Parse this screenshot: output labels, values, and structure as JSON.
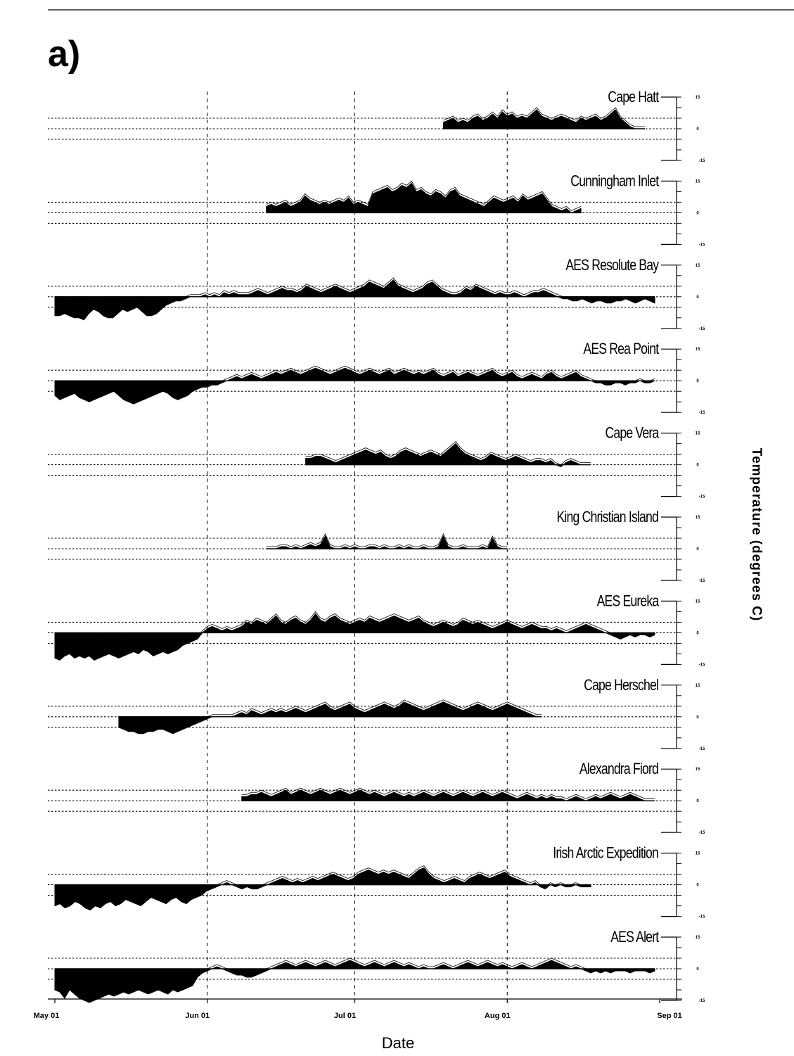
{
  "panel_label": "a)",
  "chart_data": {
    "type": "area",
    "xlabel": "Date",
    "ylabel": "Temperature (degrees C)",
    "x_ticks": [
      "May 01",
      "Jun 01",
      "Jul 01",
      "Aug 01",
      "Sep 01"
    ],
    "xlim": [
      "05-01",
      "09-01"
    ],
    "ylim": [
      -15,
      15
    ],
    "y_ticks": [
      "15",
      "0",
      "-15"
    ],
    "reference_lines": [
      -5,
      0,
      5
    ],
    "grid": "vertical dashed lines at month starts",
    "series": [
      {
        "name": "Cape Hatt",
        "start": "07-19",
        "end": "08-29",
        "values": [
          3,
          4,
          5,
          3,
          4,
          3,
          5,
          6,
          4,
          5,
          7,
          5,
          8,
          6,
          7,
          5,
          6,
          5,
          7,
          9,
          6,
          5,
          4,
          5,
          6,
          5,
          4,
          3,
          5,
          4,
          5,
          6,
          4,
          5,
          7,
          9,
          5,
          3,
          1,
          0,
          0,
          0
        ]
      },
      {
        "name": "Cunningham Inlet",
        "start": "06-13",
        "end": "08-16",
        "values": [
          3,
          4,
          3,
          4,
          5,
          3,
          4,
          5,
          8,
          6,
          5,
          4,
          5,
          4,
          5,
          6,
          5,
          7,
          4,
          5,
          4,
          3,
          9,
          10,
          11,
          12,
          10,
          11,
          13,
          12,
          14,
          10,
          11,
          9,
          8,
          10,
          9,
          7,
          10,
          11,
          8,
          7,
          6,
          5,
          4,
          3,
          5,
          7,
          6,
          5,
          6,
          7,
          5,
          8,
          6,
          7,
          8,
          9,
          6,
          3,
          2,
          1,
          2,
          0,
          1,
          2
        ]
      },
      {
        "name": "AES Resolute Bay",
        "start": "05-01",
        "end": "08-31",
        "values": [
          -9,
          -9,
          -8,
          -9,
          -10,
          -10,
          -11,
          -8,
          -6,
          -7,
          -9,
          -10,
          -10,
          -8,
          -6,
          -7,
          -6,
          -5,
          -7,
          -9,
          -9,
          -8,
          -6,
          -4,
          -3,
          -2,
          -2,
          -1,
          0,
          0,
          0,
          1,
          0,
          1,
          0,
          2,
          1,
          2,
          1,
          1,
          1,
          2,
          3,
          2,
          1,
          2,
          3,
          4,
          3,
          3,
          2,
          3,
          5,
          4,
          3,
          2,
          3,
          4,
          5,
          4,
          3,
          2,
          3,
          4,
          5,
          7,
          6,
          5,
          4,
          6,
          8,
          5,
          4,
          3,
          2,
          3,
          4,
          6,
          7,
          5,
          3,
          2,
          1,
          1,
          2,
          4,
          3,
          5,
          4,
          3,
          2,
          1,
          2,
          1,
          1,
          2,
          1,
          0,
          1,
          2,
          2,
          3,
          2,
          1,
          0,
          -1,
          -1,
          -2,
          -2,
          -1,
          -2,
          -3,
          -2,
          -2,
          -3,
          -3,
          -2,
          -2,
          -1,
          -2,
          -3,
          -2,
          -1,
          -2,
          -3
        ]
      },
      {
        "name": "AES Rea Point",
        "start": "05-01",
        "end": "08-31",
        "values": [
          -7,
          -9,
          -8,
          -7,
          -6,
          -8,
          -9,
          -10,
          -9,
          -8,
          -7,
          -6,
          -5,
          -7,
          -9,
          -10,
          -11,
          -10,
          -9,
          -8,
          -7,
          -6,
          -5,
          -6,
          -8,
          -9,
          -8,
          -7,
          -5,
          -4,
          -3,
          -3,
          -2,
          -2,
          -1,
          0,
          1,
          2,
          1,
          2,
          3,
          2,
          1,
          2,
          3,
          4,
          3,
          4,
          5,
          4,
          3,
          4,
          5,
          6,
          5,
          4,
          3,
          4,
          5,
          6,
          5,
          4,
          3,
          4,
          5,
          4,
          3,
          4,
          5,
          3,
          4,
          5,
          4,
          3,
          4,
          3,
          4,
          5,
          3,
          2,
          3,
          4,
          2,
          3,
          4,
          3,
          2,
          3,
          4,
          5,
          3,
          2,
          3,
          4,
          2,
          1,
          2,
          3,
          2,
          1,
          3,
          4,
          2,
          1,
          2,
          3,
          4,
          2,
          1,
          0,
          -1,
          -1,
          -2,
          -2,
          -1,
          -1,
          -2,
          -1,
          -1,
          0,
          -1,
          -1,
          0
        ]
      },
      {
        "name": "Cape Vera",
        "start": "06-21",
        "end": "08-18",
        "values": [
          3,
          3,
          4,
          4,
          3,
          2,
          1,
          2,
          3,
          4,
          5,
          6,
          7,
          6,
          5,
          6,
          4,
          3,
          4,
          6,
          7,
          6,
          5,
          4,
          5,
          6,
          5,
          4,
          6,
          8,
          10,
          7,
          5,
          4,
          3,
          2,
          3,
          5,
          4,
          3,
          2,
          3,
          4,
          3,
          2,
          1,
          2,
          2,
          1,
          2,
          0,
          -1,
          1,
          2,
          1,
          0,
          0,
          0
        ]
      },
      {
        "name": "King Christian Island",
        "start": "06-13",
        "end": "08-01",
        "values": [
          0,
          0,
          0,
          1,
          1,
          0,
          1,
          0,
          1,
          2,
          1,
          2,
          6,
          1,
          0,
          0,
          1,
          0,
          1,
          0,
          0,
          1,
          1,
          0,
          1,
          0,
          0,
          1,
          0,
          1,
          0,
          0,
          1,
          0,
          0,
          1,
          6,
          1,
          0,
          0,
          1,
          0,
          0,
          0,
          1,
          0,
          5,
          1,
          0,
          0
        ]
      },
      {
        "name": "AES Eureka",
        "start": "05-01",
        "end": "08-31",
        "values": [
          -12,
          -13,
          -11,
          -10,
          -12,
          -11,
          -12,
          -11,
          -13,
          -12,
          -11,
          -10,
          -11,
          -12,
          -11,
          -10,
          -9,
          -10,
          -8,
          -9,
          -11,
          -10,
          -9,
          -10,
          -9,
          -8,
          -6,
          -5,
          -4,
          -3,
          0,
          2,
          3,
          2,
          1,
          2,
          1,
          2,
          3,
          5,
          4,
          6,
          5,
          4,
          6,
          8,
          5,
          4,
          6,
          7,
          5,
          4,
          6,
          9,
          6,
          5,
          7,
          8,
          6,
          5,
          4,
          5,
          6,
          5,
          7,
          6,
          5,
          6,
          7,
          8,
          7,
          6,
          5,
          6,
          7,
          5,
          4,
          3,
          4,
          5,
          4,
          3,
          4,
          6,
          5,
          4,
          5,
          4,
          3,
          2,
          3,
          4,
          5,
          4,
          3,
          2,
          3,
          4,
          3,
          2,
          2,
          1,
          2,
          1,
          0,
          1,
          2,
          3,
          4,
          3,
          2,
          1,
          0,
          -1,
          -2,
          -3,
          -2,
          -1,
          -2,
          -1,
          -1,
          -2,
          -1
        ]
      },
      {
        "name": "Cape Herschel",
        "start": "05-14",
        "end": "08-08",
        "values": [
          -5,
          -6,
          -7,
          -7,
          -8,
          -8,
          -7,
          -7,
          -6,
          -6,
          -7,
          -8,
          -7,
          -6,
          -5,
          -4,
          -3,
          -2,
          -1,
          0,
          0,
          0,
          0,
          0,
          1,
          2,
          1,
          3,
          2,
          1,
          2,
          3,
          2,
          3,
          2,
          3,
          4,
          3,
          2,
          3,
          4,
          5,
          6,
          4,
          3,
          4,
          5,
          6,
          4,
          3,
          2,
          3,
          4,
          5,
          6,
          5,
          4,
          5,
          7,
          6,
          5,
          4,
          3,
          4,
          5,
          6,
          7,
          6,
          5,
          4,
          3,
          4,
          5,
          6,
          5,
          4,
          3,
          4,
          5,
          6,
          5,
          4,
          3,
          2,
          1,
          0,
          0
        ]
      },
      {
        "name": "Alexandra Fiord",
        "start": "06-08",
        "end": "08-31",
        "values": [
          2,
          2,
          3,
          3,
          4,
          3,
          2,
          3,
          4,
          5,
          3,
          4,
          5,
          4,
          3,
          4,
          5,
          4,
          3,
          4,
          5,
          4,
          3,
          4,
          5,
          4,
          3,
          4,
          3,
          2,
          3,
          4,
          3,
          2,
          3,
          2,
          3,
          4,
          3,
          2,
          3,
          4,
          3,
          2,
          3,
          4,
          3,
          2,
          3,
          4,
          3,
          2,
          3,
          4,
          3,
          2,
          1,
          2,
          3,
          2,
          1,
          2,
          1,
          2,
          1,
          1,
          0,
          1,
          2,
          1,
          0,
          1,
          2,
          1,
          2,
          3,
          2,
          1,
          2,
          3,
          2,
          1,
          0,
          0,
          0
        ]
      },
      {
        "name": "Irish Arctic Expedition",
        "start": "05-01",
        "end": "08-18",
        "values": [
          -10,
          -9,
          -11,
          -10,
          -8,
          -9,
          -11,
          -12,
          -10,
          -11,
          -9,
          -8,
          -10,
          -9,
          -7,
          -8,
          -9,
          -10,
          -8,
          -6,
          -7,
          -8,
          -9,
          -7,
          -6,
          -8,
          -9,
          -7,
          -6,
          -5,
          -3,
          -2,
          -1,
          0,
          1,
          0,
          -1,
          -2,
          -1,
          -2,
          -2,
          -1,
          0,
          1,
          2,
          3,
          2,
          1,
          2,
          1,
          2,
          3,
          2,
          3,
          4,
          5,
          4,
          3,
          2,
          3,
          5,
          6,
          7,
          6,
          5,
          6,
          5,
          6,
          5,
          4,
          3,
          5,
          7,
          8,
          5,
          3,
          2,
          1,
          2,
          3,
          2,
          1,
          3,
          4,
          5,
          4,
          3,
          4,
          5,
          6,
          4,
          3,
          2,
          1,
          0,
          1,
          -1,
          -2,
          0,
          -1,
          0,
          -1,
          -1,
          0,
          -1,
          -1,
          -1
        ]
      },
      {
        "name": "AES Alert",
        "start": "05-01",
        "end": "08-31",
        "values": [
          -10,
          -11,
          -14,
          -10,
          -12,
          -14,
          -15,
          -16,
          -15,
          -14,
          -13,
          -12,
          -13,
          -12,
          -11,
          -12,
          -11,
          -10,
          -11,
          -12,
          -11,
          -10,
          -11,
          -12,
          -10,
          -11,
          -10,
          -9,
          -8,
          -4,
          -2,
          -1,
          0,
          1,
          0,
          -1,
          -2,
          -3,
          -3,
          -4,
          -4,
          -3,
          -2,
          -1,
          0,
          1,
          2,
          3,
          2,
          1,
          2,
          3,
          2,
          1,
          2,
          3,
          2,
          1,
          2,
          3,
          4,
          3,
          2,
          1,
          2,
          3,
          2,
          1,
          2,
          3,
          2,
          1,
          2,
          1,
          0,
          1,
          0,
          0,
          1,
          2,
          1,
          0,
          1,
          2,
          3,
          2,
          1,
          2,
          3,
          2,
          1,
          2,
          1,
          0,
          1,
          2,
          1,
          0,
          1,
          2,
          3,
          4,
          3,
          2,
          1,
          0,
          1,
          0,
          -1,
          -2,
          -1,
          -2,
          -1,
          -2,
          -1,
          -1,
          -1,
          -2,
          -1,
          -1,
          -1,
          -2,
          -1
        ]
      }
    ]
  }
}
